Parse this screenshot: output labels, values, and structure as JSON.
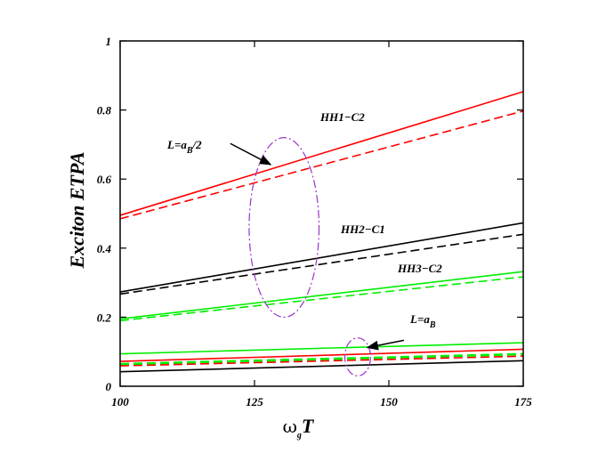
{
  "chart_data": {
    "type": "line",
    "xlabel": {
      "main": "ω",
      "sub": "g",
      "tail": "T"
    },
    "ylabel": "Exciton ETPA",
    "xlim": [
      100,
      175
    ],
    "ylim": [
      0,
      1
    ],
    "xticks": [
      100,
      125,
      150,
      175
    ],
    "xtick_labels": [
      "100",
      "125",
      "150",
      "175"
    ],
    "yticks": [
      0,
      0.2,
      0.4,
      0.6,
      0.8,
      1
    ],
    "ytick_labels": [
      "0",
      "0.2",
      "0.4",
      "0.6",
      "0.8",
      "1"
    ],
    "grid": false,
    "series": [
      {
        "color": "#ff0000",
        "dash": "solid",
        "x": [
          100,
          175
        ],
        "y": [
          0.495,
          0.853
        ]
      },
      {
        "color": "#ff0000",
        "dash": "dashed",
        "x": [
          100,
          175
        ],
        "y": [
          0.485,
          0.797
        ]
      },
      {
        "color": "#000000",
        "dash": "solid",
        "x": [
          100,
          175
        ],
        "y": [
          0.273,
          0.473
        ]
      },
      {
        "color": "#000000",
        "dash": "dashed",
        "x": [
          100,
          175
        ],
        "y": [
          0.267,
          0.44
        ]
      },
      {
        "color": "#00ee00",
        "dash": "solid",
        "x": [
          100,
          175
        ],
        "y": [
          0.195,
          0.332
        ]
      },
      {
        "color": "#00ee00",
        "dash": "dashed",
        "x": [
          100,
          175
        ],
        "y": [
          0.19,
          0.317
        ]
      },
      {
        "color": "#00ee00",
        "dash": "solid",
        "x": [
          100,
          175
        ],
        "y": [
          0.094,
          0.126
        ]
      },
      {
        "color": "#ff0000",
        "dash": "solid",
        "x": [
          100,
          175
        ],
        "y": [
          0.072,
          0.107
        ]
      },
      {
        "color": "#00ee00",
        "dash": "bold-dashed",
        "x": [
          100,
          175
        ],
        "y": [
          0.064,
          0.093
        ]
      },
      {
        "color": "#ff0000",
        "dash": "dashed",
        "x": [
          100,
          175
        ],
        "y": [
          0.059,
          0.087
        ]
      },
      {
        "color": "#000000",
        "dash": "solid",
        "x": [
          100,
          175
        ],
        "y": [
          0.042,
          0.074
        ]
      }
    ],
    "annotations": {
      "hh1": "HH1−C2",
      "hh2": "HH2−C1",
      "hh3": "HH3−C2",
      "l_half_prefix": "L=a",
      "l_half_sub": "B",
      "l_half_suffix": "/2",
      "l_full_prefix": "L=a",
      "l_full_sub": "B"
    },
    "ellipses": [
      {
        "cx": 130.5,
        "cy": 0.46,
        "rx": 6.5,
        "ry": 0.26,
        "color": "#9933cc"
      },
      {
        "cx": 144.2,
        "cy": 0.085,
        "rx": 2.4,
        "ry": 0.055,
        "color": "#9933cc"
      }
    ],
    "arrows": [
      {
        "from": [
          120.5,
          0.703
        ],
        "to": [
          128.0,
          0.642
        ]
      },
      {
        "from": [
          152.8,
          0.133
        ],
        "to": [
          146.0,
          0.112
        ]
      }
    ]
  }
}
